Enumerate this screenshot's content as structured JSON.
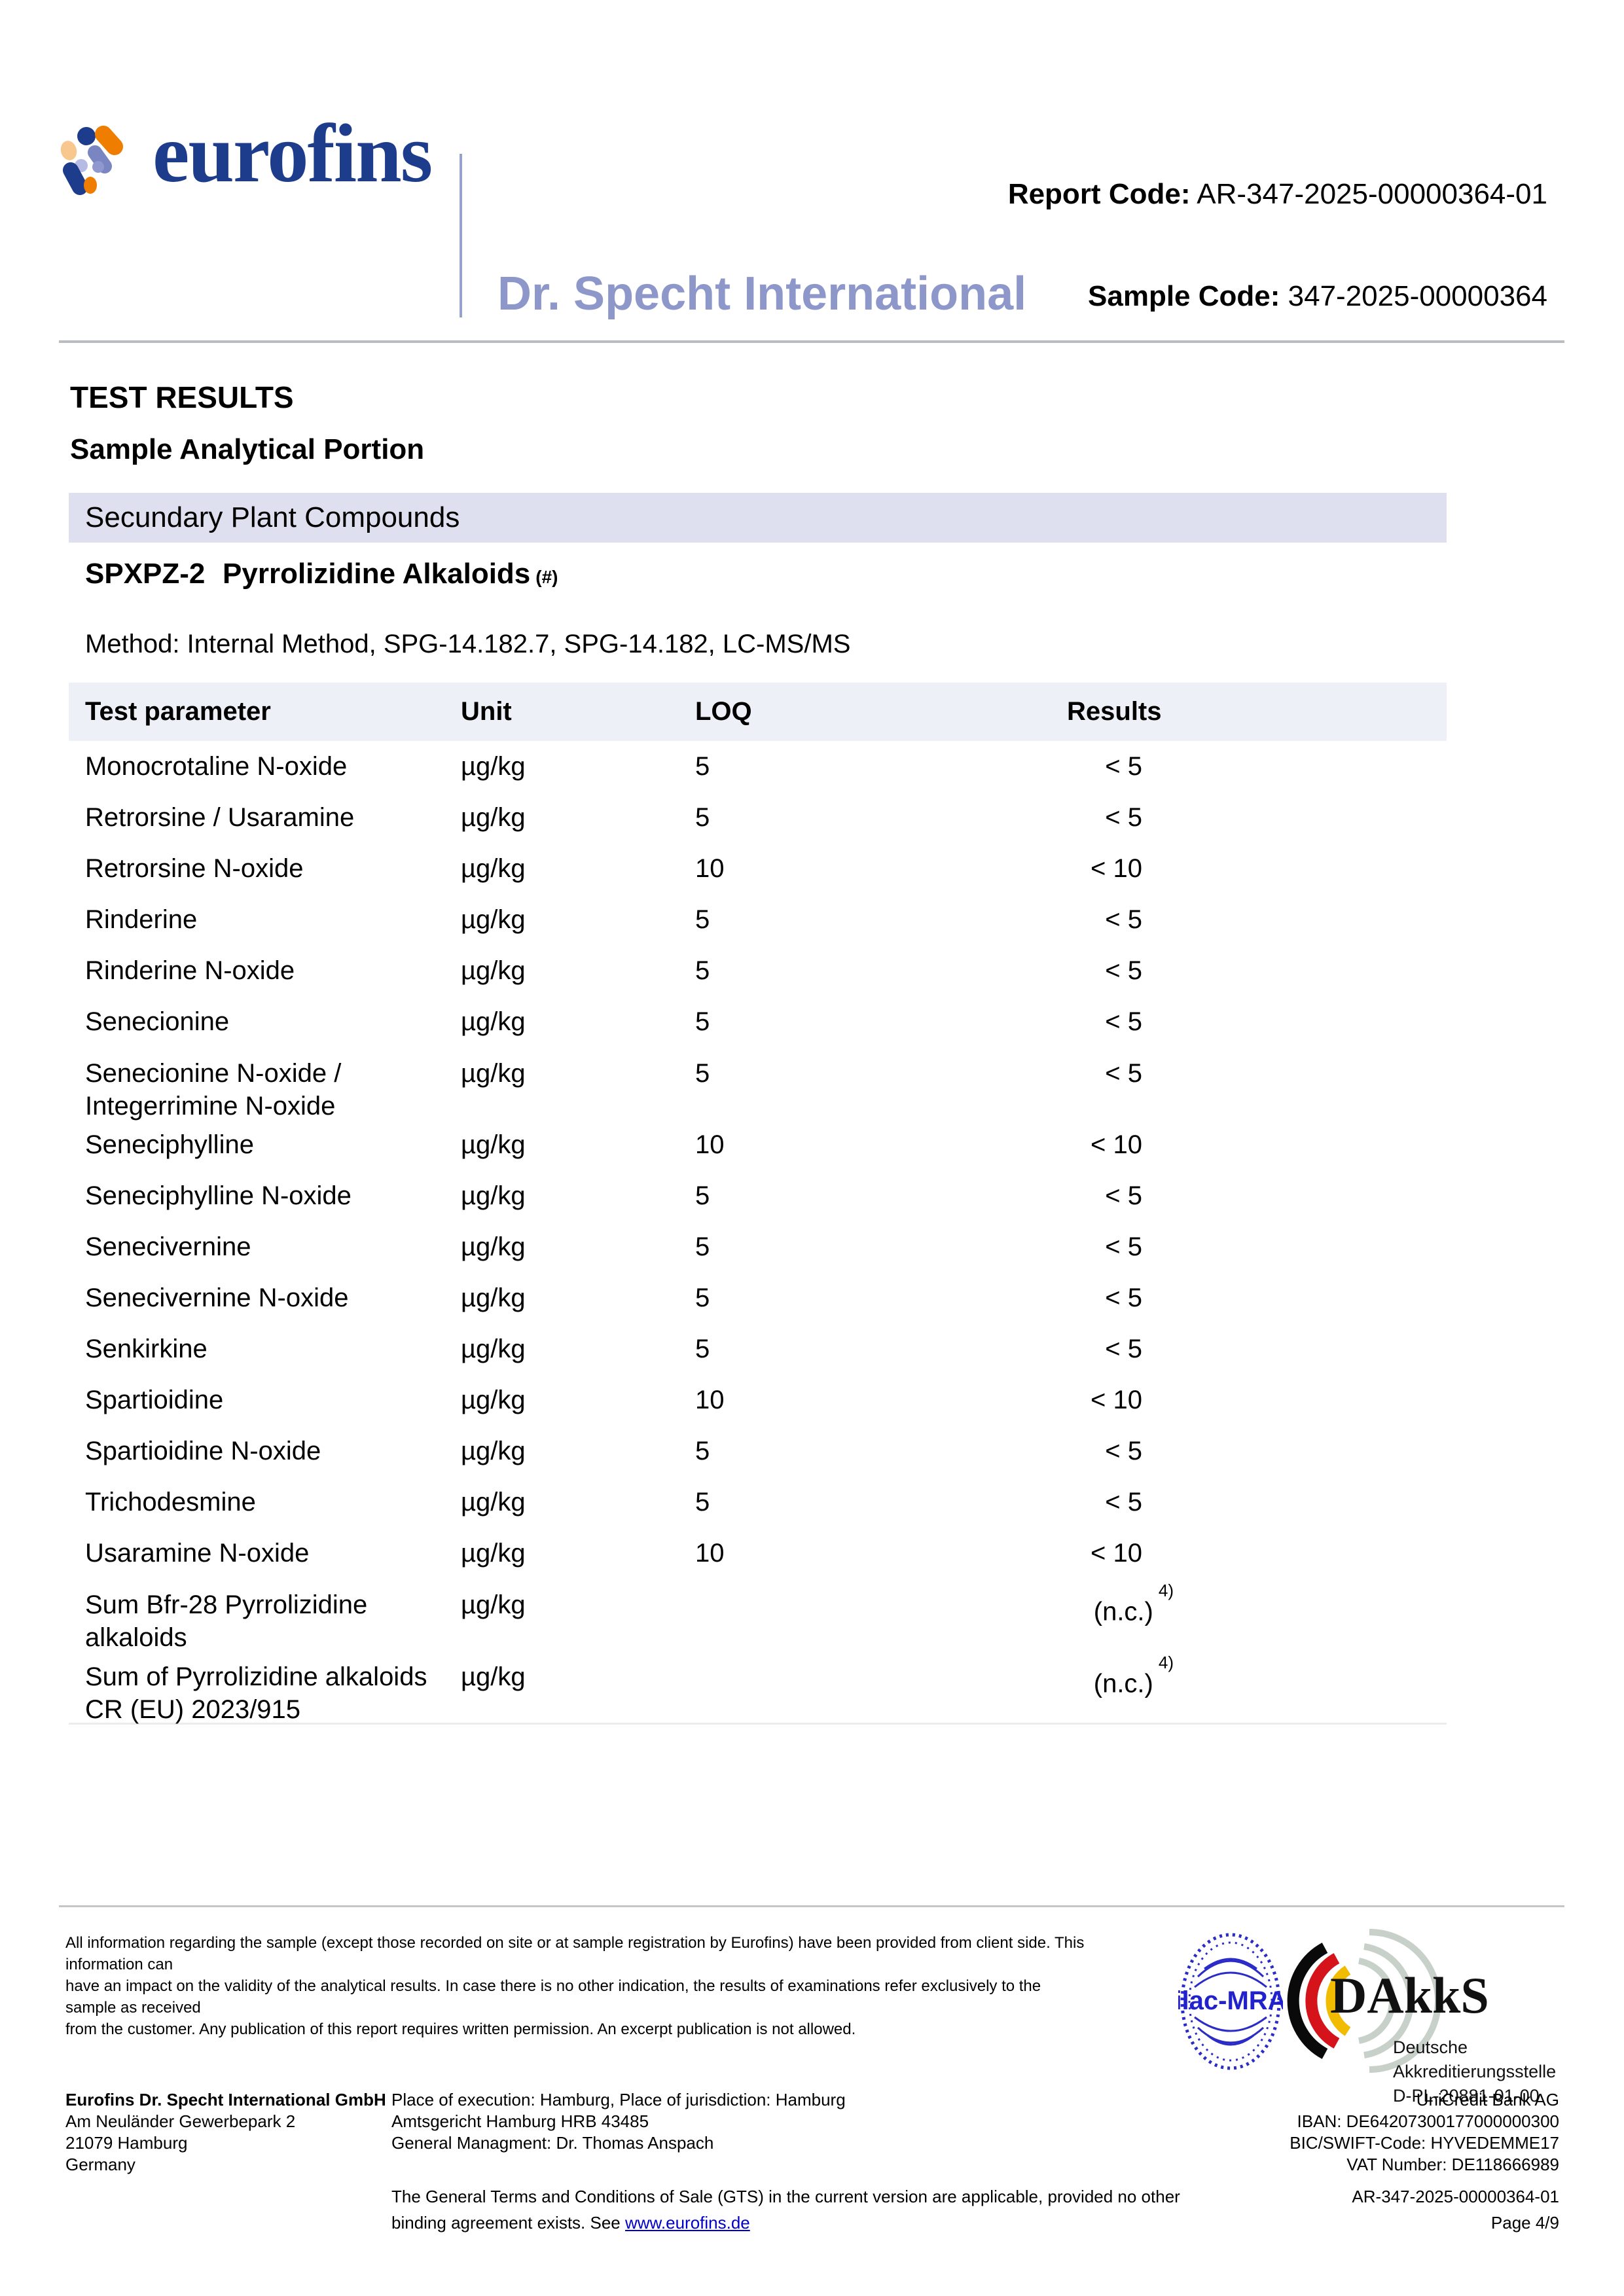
{
  "header": {
    "logo_word": "eurofins",
    "brand_name": "Dr. Specht International",
    "report_code_label": "Report Code:",
    "report_code_value": "AR-347-2025-00000364-01",
    "sample_code_label": "Sample Code:",
    "sample_code_value": "347-2025-00000364"
  },
  "main": {
    "title": "TEST RESULTS",
    "subtitle": "Sample Analytical Portion",
    "section_title": "Secundary Plant Compounds",
    "group_code": "SPXPZ-2",
    "group_name": "Pyrrolizidine Alkaloids",
    "group_mark": "(#)",
    "method": "Method: Internal Method, SPG-14.182.7, SPG-14.182, LC-MS/MS"
  },
  "table": {
    "headers": [
      "Test parameter",
      "Unit",
      "LOQ",
      "Results"
    ],
    "rows": [
      {
        "param": [
          "Monocrotaline N-oxide"
        ],
        "unit": "µg/kg",
        "loq": "5",
        "result": "< 5",
        "sup": ""
      },
      {
        "param": [
          "Retrorsine / Usaramine"
        ],
        "unit": "µg/kg",
        "loq": "5",
        "result": "< 5",
        "sup": ""
      },
      {
        "param": [
          "Retrorsine N-oxide"
        ],
        "unit": "µg/kg",
        "loq": "10",
        "result": "< 10",
        "sup": ""
      },
      {
        "param": [
          "Rinderine"
        ],
        "unit": "µg/kg",
        "loq": "5",
        "result": "< 5",
        "sup": ""
      },
      {
        "param": [
          "Rinderine N-oxide"
        ],
        "unit": "µg/kg",
        "loq": "5",
        "result": "< 5",
        "sup": ""
      },
      {
        "param": [
          "Senecionine"
        ],
        "unit": "µg/kg",
        "loq": "5",
        "result": "< 5",
        "sup": ""
      },
      {
        "param": [
          "Senecionine N-oxide /",
          "Integerrimine N-oxide"
        ],
        "unit": "µg/kg",
        "loq": "5",
        "result": "< 5",
        "sup": ""
      },
      {
        "param": [
          "Seneciphylline"
        ],
        "unit": "µg/kg",
        "loq": "10",
        "result": "< 10",
        "sup": ""
      },
      {
        "param": [
          "Seneciphylline N-oxide"
        ],
        "unit": "µg/kg",
        "loq": "5",
        "result": "< 5",
        "sup": ""
      },
      {
        "param": [
          "Senecivernine"
        ],
        "unit": "µg/kg",
        "loq": "5",
        "result": "< 5",
        "sup": ""
      },
      {
        "param": [
          "Senecivernine N-oxide"
        ],
        "unit": "µg/kg",
        "loq": "5",
        "result": "< 5",
        "sup": ""
      },
      {
        "param": [
          "Senkirkine"
        ],
        "unit": "µg/kg",
        "loq": "5",
        "result": "< 5",
        "sup": ""
      },
      {
        "param": [
          "Spartioidine"
        ],
        "unit": "µg/kg",
        "loq": "10",
        "result": "< 10",
        "sup": ""
      },
      {
        "param": [
          "Spartioidine N-oxide"
        ],
        "unit": "µg/kg",
        "loq": "5",
        "result": "< 5",
        "sup": ""
      },
      {
        "param": [
          "Trichodesmine"
        ],
        "unit": "µg/kg",
        "loq": "5",
        "result": "< 5",
        "sup": ""
      },
      {
        "param": [
          "Usaramine N-oxide"
        ],
        "unit": "µg/kg",
        "loq": "10",
        "result": "< 10",
        "sup": ""
      },
      {
        "param": [
          "Sum Bfr-28 Pyrrolizidine",
          "alkaloids"
        ],
        "unit": "µg/kg",
        "loq": "",
        "result": "(n.c.)",
        "sup": "4)"
      },
      {
        "param": [
          "Sum of Pyrrolizidine alkaloids",
          "CR (EU) 2023/915"
        ],
        "unit": "µg/kg",
        "loq": "",
        "result": "(n.c.)",
        "sup": "4)"
      }
    ]
  },
  "footer": {
    "disclaimer_lines": [
      "All information regarding the sample (except those recorded on site or at sample registration by Eurofins) have been provided from client side. This information can",
      "have an impact on the validity of the analytical results. In case there is no other indication, the results of examinations refer exclusively to the sample as received",
      "from the customer. Any publication of this report requires written permission. An excerpt publication is not allowed."
    ],
    "ilac_label": "ilac-MRA",
    "dakks_word": "DAkkS",
    "dakks_lines": [
      "Deutsche",
      "Akkreditierungsstelle",
      "D-PL-20881-01-00"
    ],
    "company_lines": [
      "Eurofins Dr. Specht International GmbH",
      "Am Neuländer Gewerbepark 2",
      "21079 Hamburg",
      "Germany"
    ],
    "legal_lines": [
      "Place of execution: Hamburg, Place of jurisdiction: Hamburg",
      "Amtsgericht Hamburg HRB 43485",
      "General Managment: Dr. Thomas Anspach"
    ],
    "bank_lines": [
      "UniCredit Bank AG",
      "IBAN: DE64207300177000000300",
      "BIC/SWIFT-Code: HYVEDEMME17",
      "VAT Number: DE118666989"
    ],
    "gts_line1": "The General Terms and Conditions of Sale (GTS) in the current version are applicable, provided no other",
    "gts_line2_text": "binding agreement exists. See ",
    "gts_link": "www.eurofins.de",
    "report_ref": "AR-347-2025-00000364-01",
    "page_label": "Page 4/9"
  },
  "colors": {
    "brand_navy": "#1e3c8c",
    "brand_orange": "#ee7d00",
    "brand_peach": "#f8c68f",
    "brand_periwinkle": "#8d97ca",
    "brand_lavender": "#aab0dd",
    "section_band_bg": "#dee0ef",
    "table_header_bg": "#eef0f7",
    "link_blue": "#0000c8",
    "ilac_blue": "#2b2bc8",
    "dakks_red": "#d5131a",
    "dakks_gold": "#f1bb00"
  }
}
